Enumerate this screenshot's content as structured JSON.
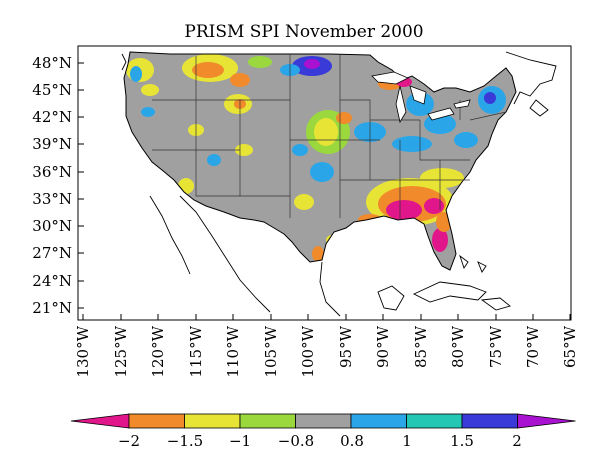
{
  "title": "PRISM SPI November 2000",
  "latitude_ticks": [
    "48°N",
    "45°N",
    "42°N",
    "39°N",
    "36°N",
    "33°N",
    "30°N",
    "27°N",
    "24°N",
    "21°N"
  ],
  "longitude_ticks": [
    "130°W",
    "125°W",
    "120°W",
    "115°W",
    "110°W",
    "105°W",
    "100°W",
    "95°W",
    "90°W",
    "85°W",
    "80°W",
    "75°W",
    "70°W",
    "65°W"
  ],
  "colorbar": {
    "labels": [
      "−2",
      "−1.5",
      "−1",
      "−0.8",
      "0.8",
      "1",
      "1.5",
      "2"
    ],
    "bins": [
      {
        "range": "< -2",
        "color": "#e0168a"
      },
      {
        "range": "-2 to -1.5",
        "color": "#f08a2a"
      },
      {
        "range": "-1.5 to -1",
        "color": "#e8e436"
      },
      {
        "range": "-1 to -0.8",
        "color": "#9ad83e"
      },
      {
        "range": "-0.8 to 0.8",
        "color": "#a0a0a0"
      },
      {
        "range": "0.8 to 1",
        "color": "#2aa6e8"
      },
      {
        "range": "1 to 1.5",
        "color": "#24c6b4"
      },
      {
        "range": "1.5 to 2",
        "color": "#3a3ad8"
      },
      {
        "range": "> 2",
        "color": "#a812d0"
      }
    ]
  },
  "colors": {
    "neutral": "#a0a0a0",
    "state_border": "#333333",
    "coastline": "#000000"
  }
}
